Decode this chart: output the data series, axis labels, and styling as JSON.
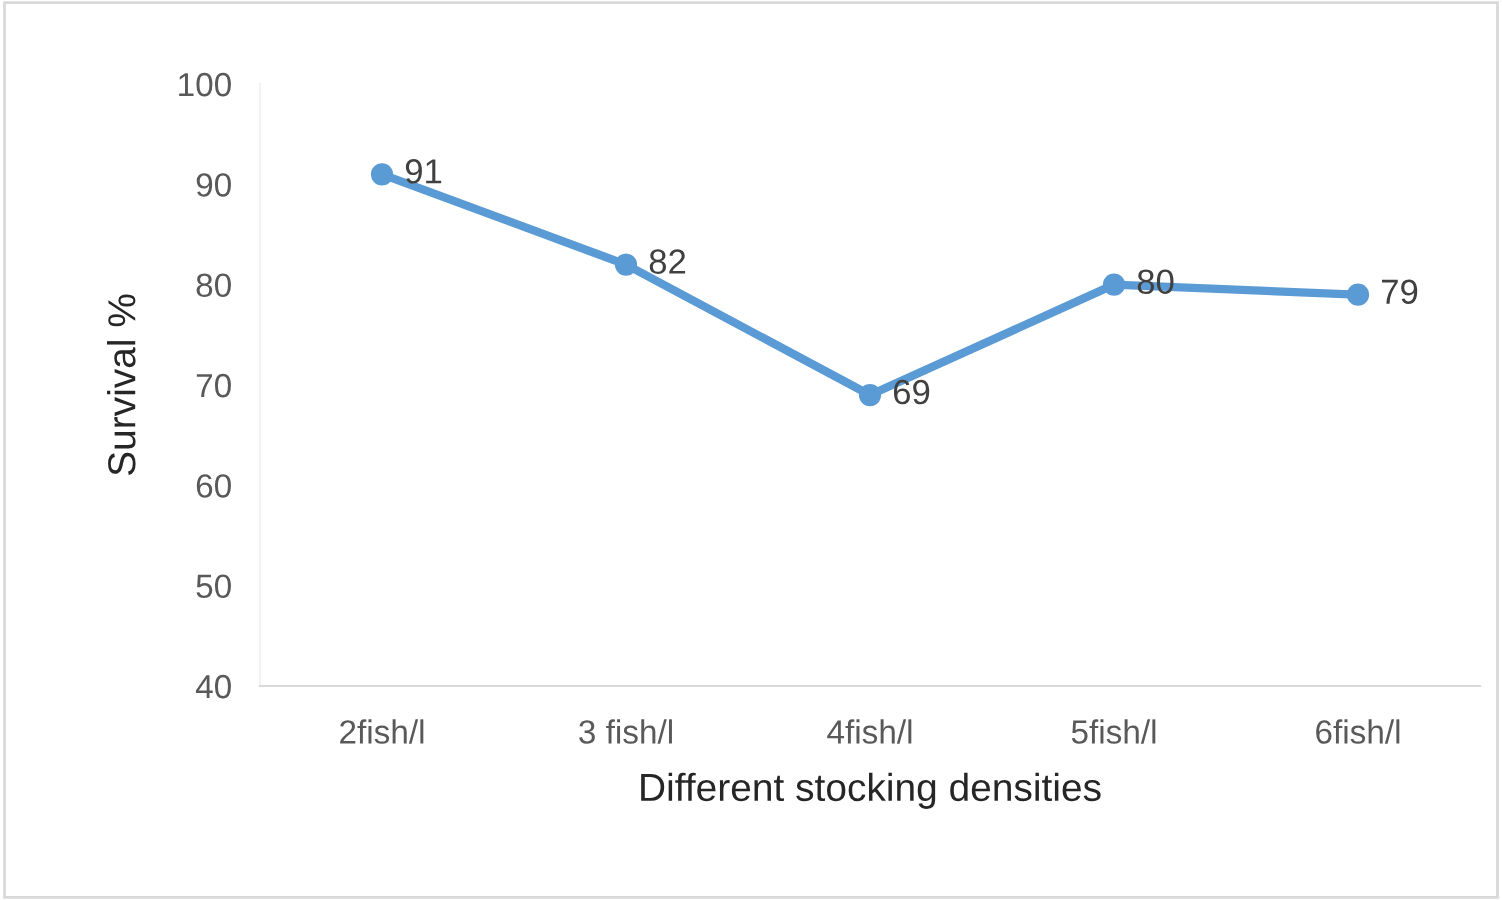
{
  "chart_data": {
    "type": "line",
    "xlabel": "Different stocking densities",
    "ylabel": "Survival %",
    "categories": [
      "2fish/l",
      "3 fish/l",
      "4fish/l",
      "5fish/l",
      "6fish/l"
    ],
    "series": [
      {
        "color": "#5b9bd5",
        "values": [
          91,
          82,
          69,
          80,
          79
        ]
      }
    ],
    "ylim": [
      40,
      100
    ],
    "yticks": [
      40,
      50,
      60,
      70,
      80,
      90,
      100
    ],
    "grid": false,
    "legend": false,
    "marker": "circle",
    "line_style": "solid",
    "data_labels": true
  }
}
